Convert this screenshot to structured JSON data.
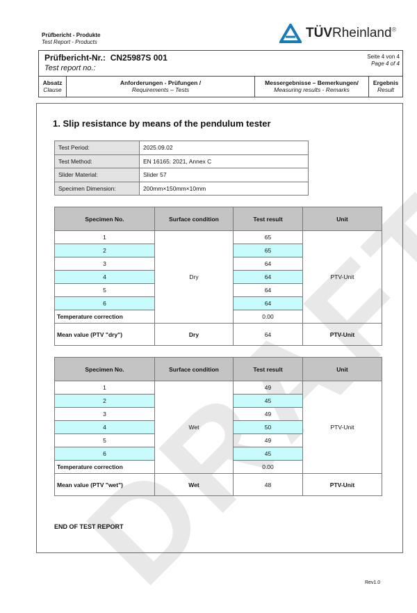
{
  "header": {
    "title_de": "Prüfbericht - Produkte",
    "title_en": "Test Report - Products",
    "logo_text_bold": "TÜV",
    "logo_text": "Rheinland",
    "logo_reg": "®",
    "brand_color": "#1a7ab8"
  },
  "report": {
    "no_label_de": "Prüfbericht-Nr.:",
    "no_value": "CN25987S 001",
    "no_label_en": "Test report no.:",
    "page_de": "Seite 4 von 4",
    "page_en": "Page 4 of 4"
  },
  "columns": [
    {
      "de": "Absatz",
      "en": "Clause"
    },
    {
      "de": "Anforderungen - Prüfungen /",
      "en": "Requirements – Tests"
    },
    {
      "de": "Messergebnisse – Bemerkungen/",
      "en": "Measuring results - Remarks"
    },
    {
      "de": "Ergebnis",
      "en": "Result"
    }
  ],
  "section_title": "1. Slip resistance by means of the pendulum tester",
  "info": [
    [
      "Test Period:",
      "2025.09.02"
    ],
    [
      "Test Method:",
      "EN 16165: 2021, Annex C"
    ],
    [
      "Slider Material:",
      "Slider 57"
    ],
    [
      "Specimen Dimension:",
      "200mm×150mm×10mm"
    ]
  ],
  "table_headers": {
    "specimen": "Specimen No.",
    "surface": "Surface condition",
    "result": "Test result",
    "unit": "Unit"
  },
  "dry": {
    "condition": "Dry",
    "unit": "PTV-Unit",
    "rows": [
      [
        "1",
        "65"
      ],
      [
        "2",
        "65"
      ],
      [
        "3",
        "64"
      ],
      [
        "4",
        "64"
      ],
      [
        "5",
        "64"
      ],
      [
        "6",
        "64"
      ]
    ],
    "temp_label": "Temperature correction",
    "temp_value": "0.00",
    "mean_label": "Mean value (PTV \"dry\")",
    "mean_condition": "Dry",
    "mean_value": "64",
    "mean_unit": "PTV-Unit"
  },
  "wet": {
    "condition": "Wet",
    "unit": "PTV-Unit",
    "rows": [
      [
        "1",
        "49"
      ],
      [
        "2",
        "45"
      ],
      [
        "3",
        "49"
      ],
      [
        "4",
        "50"
      ],
      [
        "5",
        "49"
      ],
      [
        "6",
        "45"
      ]
    ],
    "temp_label": "Temperature correction",
    "temp_value": "0.00",
    "mean_label": "Mean value (PTV \"wet\")",
    "mean_condition": "Wet",
    "mean_value": "48",
    "mean_unit": "PTV-Unit"
  },
  "end_text": "END OF TEST REPORT",
  "revision": "Rev1.0",
  "watermark": "DRAFT"
}
